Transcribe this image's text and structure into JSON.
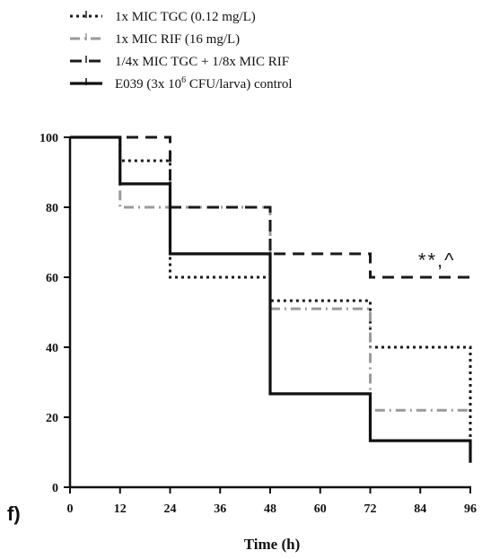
{
  "chart_data": {
    "type": "line",
    "step": true,
    "panel_label": "f)",
    "xlabel": "Time (h)",
    "ylabel": "",
    "xlim": [
      0,
      96
    ],
    "ylim": [
      0,
      100
    ],
    "x_ticks": [
      "0",
      "12",
      "24",
      "36",
      "48",
      "60",
      "72",
      "84",
      "96"
    ],
    "y_ticks": [
      "0",
      "20",
      "40",
      "60",
      "80",
      "100"
    ],
    "annotation": "**,^",
    "grid": false,
    "legend_position": "top-left",
    "series": [
      {
        "name": "1x MIC TGC (0.12 mg/L)",
        "style": "dotted",
        "color": "#1a1a1a",
        "points": [
          [
            0,
            100
          ],
          [
            12,
            93.3
          ],
          [
            24,
            60
          ],
          [
            48,
            53.3
          ],
          [
            72,
            40
          ],
          [
            96,
            40
          ],
          [
            96,
            7
          ]
        ]
      },
      {
        "name": "1x MIC RIF (16 mg/L)",
        "style": "dashdot",
        "color": "#9a9a9a",
        "points": [
          [
            0,
            100
          ],
          [
            12,
            80
          ],
          [
            24,
            80
          ],
          [
            48,
            51
          ],
          [
            72,
            22
          ],
          [
            96,
            22
          ]
        ]
      },
      {
        "name": "1/4x MIC TGC + 1/8x MIC RIF",
        "style": "dashed",
        "color": "#1a1a1a",
        "points": [
          [
            0,
            100
          ],
          [
            24,
            80
          ],
          [
            48,
            66.7
          ],
          [
            72,
            60
          ],
          [
            96,
            60
          ]
        ]
      },
      {
        "name_parts": [
          "E039 (3x 10",
          "6",
          " CFU/larva) control"
        ],
        "style": "solid",
        "color": "#111111",
        "points": [
          [
            0,
            100
          ],
          [
            12,
            86.7
          ],
          [
            24,
            66.7
          ],
          [
            48,
            26.7
          ],
          [
            72,
            13.3
          ],
          [
            96,
            13.3
          ],
          [
            96,
            7
          ]
        ]
      }
    ]
  }
}
